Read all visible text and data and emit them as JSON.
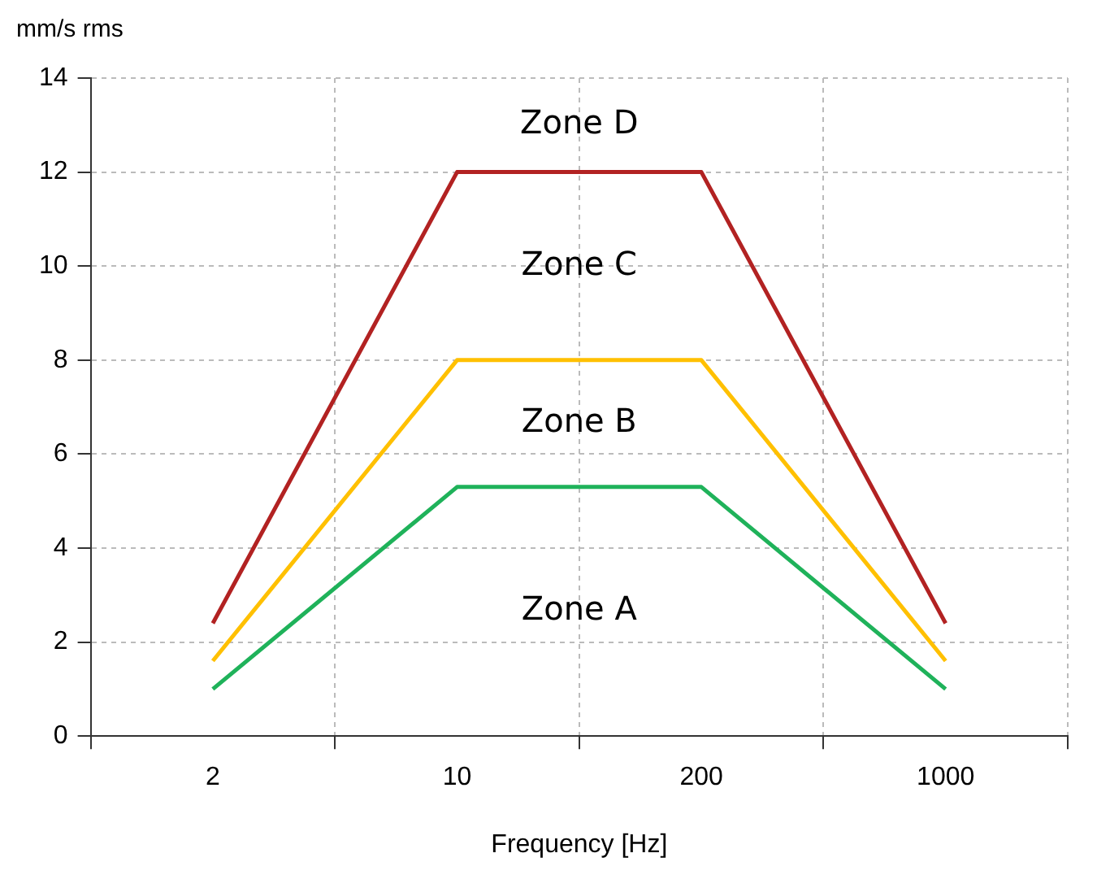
{
  "chart_data": {
    "type": "line",
    "xlabel": "Frequency [Hz]",
    "ylabel": "mm/s rms",
    "categories": [
      "2",
      "10",
      "200",
      "1000"
    ],
    "series": [
      {
        "color": "#b22222",
        "values": [
          2.4,
          12,
          12,
          2.4
        ]
      },
      {
        "color": "#ffc000",
        "values": [
          1.6,
          8,
          8,
          1.6
        ]
      },
      {
        "color": "#1fb25a",
        "values": [
          1.0,
          5.3,
          5.3,
          1.0
        ]
      }
    ],
    "ylim": [
      0,
      14
    ],
    "yticks": [
      0,
      2,
      4,
      6,
      8,
      10,
      12,
      14
    ],
    "grid": true,
    "legend": false,
    "marker": "none",
    "line_style": "solid",
    "annotations": [
      "Zone D",
      "Zone C",
      "Zone B",
      "Zone A"
    ]
  }
}
